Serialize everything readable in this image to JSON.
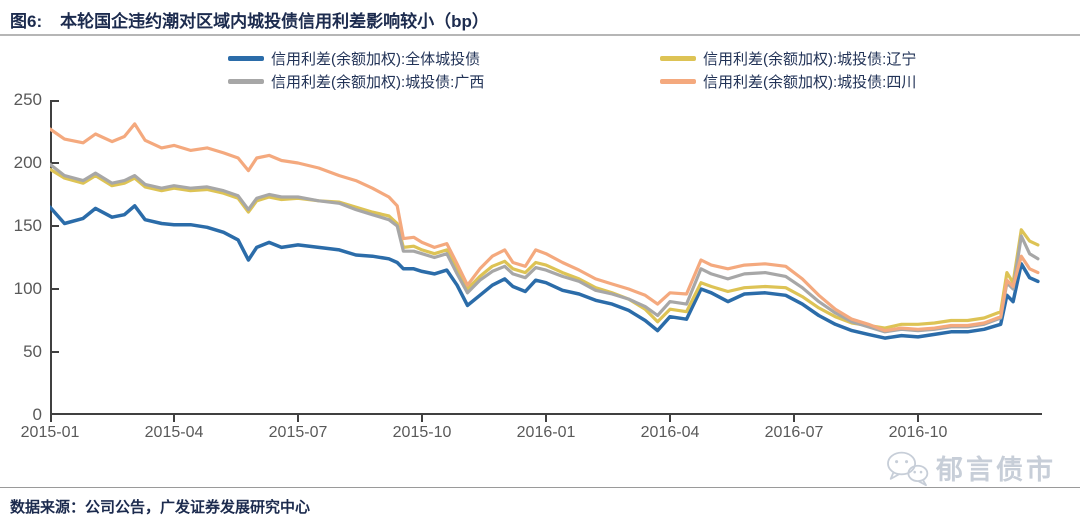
{
  "figure": {
    "label": "图6:",
    "title": "本轮国企违约潮对区域内城投债信用利差影响较小（bp）"
  },
  "source_note": "数据来源：公司公告，广发证券发展研究中心",
  "watermark": {
    "icon": "wechat-icon",
    "text": "郁言债市"
  },
  "chart_data": {
    "type": "line",
    "title": "本轮国企违约潮对区域内城投债信用利差影响较小（bp）",
    "unit": "bp",
    "grid": false,
    "legend_position": "top",
    "axis_color": "#404040",
    "tick_label_color": "#595959",
    "x_axis": {
      "labels": [
        "2015-01",
        "2015-04",
        "2015-07",
        "2015-10",
        "2016-01",
        "2016-04",
        "2016-07",
        "2016-10"
      ],
      "tick_month_offsets": [
        0,
        3,
        6,
        9,
        12,
        15,
        18,
        21
      ],
      "range_months": [
        0,
        24
      ],
      "note": "x values below are months since 2015-01"
    },
    "y_axis": {
      "ticks": [
        0,
        50,
        100,
        150,
        200,
        250
      ],
      "range": [
        0,
        250
      ]
    },
    "series": [
      {
        "id": "all",
        "name": "信用利差(余额加权):全体城投债",
        "color": "#2B6CA9",
        "width": 3.5,
        "points": [
          [
            0,
            165
          ],
          [
            0.35,
            152
          ],
          [
            0.8,
            156
          ],
          [
            1.1,
            164
          ],
          [
            1.5,
            157
          ],
          [
            1.8,
            159
          ],
          [
            2.05,
            166
          ],
          [
            2.3,
            155
          ],
          [
            2.7,
            152
          ],
          [
            3,
            151
          ],
          [
            3.4,
            151
          ],
          [
            3.8,
            149
          ],
          [
            4.2,
            145
          ],
          [
            4.55,
            139
          ],
          [
            4.8,
            123
          ],
          [
            5,
            133
          ],
          [
            5.3,
            137
          ],
          [
            5.6,
            133
          ],
          [
            6,
            135
          ],
          [
            6.5,
            133
          ],
          [
            7,
            131
          ],
          [
            7.4,
            127
          ],
          [
            7.8,
            126
          ],
          [
            8.2,
            124
          ],
          [
            8.4,
            121
          ],
          [
            8.55,
            116
          ],
          [
            8.8,
            116
          ],
          [
            9,
            114
          ],
          [
            9.3,
            112
          ],
          [
            9.6,
            115
          ],
          [
            9.85,
            103
          ],
          [
            10.1,
            87
          ],
          [
            10.4,
            95
          ],
          [
            10.7,
            103
          ],
          [
            11,
            108
          ],
          [
            11.2,
            102
          ],
          [
            11.5,
            98
          ],
          [
            11.75,
            107
          ],
          [
            12,
            105
          ],
          [
            12.4,
            99
          ],
          [
            12.8,
            96
          ],
          [
            13.2,
            91
          ],
          [
            13.6,
            88
          ],
          [
            14,
            83
          ],
          [
            14.4,
            75
          ],
          [
            14.7,
            67
          ],
          [
            15,
            78
          ],
          [
            15.4,
            76
          ],
          [
            15.75,
            100
          ],
          [
            16,
            97
          ],
          [
            16.4,
            90
          ],
          [
            16.8,
            96
          ],
          [
            17.3,
            97
          ],
          [
            17.8,
            95
          ],
          [
            18.2,
            88
          ],
          [
            18.6,
            79
          ],
          [
            19,
            72
          ],
          [
            19.4,
            67
          ],
          [
            19.8,
            64
          ],
          [
            20.2,
            61
          ],
          [
            20.6,
            63
          ],
          [
            21,
            62
          ],
          [
            21.4,
            64
          ],
          [
            21.8,
            66
          ],
          [
            22.2,
            66
          ],
          [
            22.6,
            68
          ],
          [
            23,
            72
          ],
          [
            23.15,
            95
          ],
          [
            23.3,
            90
          ],
          [
            23.5,
            120
          ],
          [
            23.7,
            109
          ],
          [
            23.9,
            106
          ]
        ]
      },
      {
        "id": "liaoning",
        "name": "信用利差(余额加权):城投债:辽宁",
        "color": "#DDC355",
        "width": 3.2,
        "points": [
          [
            0,
            195
          ],
          [
            0.35,
            188
          ],
          [
            0.8,
            184
          ],
          [
            1.1,
            190
          ],
          [
            1.5,
            182
          ],
          [
            1.8,
            184
          ],
          [
            2.05,
            188
          ],
          [
            2.3,
            181
          ],
          [
            2.7,
            178
          ],
          [
            3,
            180
          ],
          [
            3.4,
            178
          ],
          [
            3.8,
            179
          ],
          [
            4.2,
            176
          ],
          [
            4.55,
            172
          ],
          [
            4.8,
            161
          ],
          [
            5,
            170
          ],
          [
            5.3,
            173
          ],
          [
            5.6,
            171
          ],
          [
            6,
            172
          ],
          [
            6.5,
            170
          ],
          [
            7,
            169
          ],
          [
            7.4,
            165
          ],
          [
            7.8,
            161
          ],
          [
            8.2,
            158
          ],
          [
            8.4,
            152
          ],
          [
            8.55,
            133
          ],
          [
            8.8,
            134
          ],
          [
            9,
            131
          ],
          [
            9.3,
            128
          ],
          [
            9.6,
            131
          ],
          [
            9.85,
            116
          ],
          [
            10.1,
            100
          ],
          [
            10.4,
            110
          ],
          [
            10.7,
            118
          ],
          [
            11,
            122
          ],
          [
            11.2,
            116
          ],
          [
            11.5,
            113
          ],
          [
            11.75,
            121
          ],
          [
            12,
            119
          ],
          [
            12.4,
            113
          ],
          [
            12.8,
            108
          ],
          [
            13.2,
            101
          ],
          [
            13.6,
            97
          ],
          [
            14,
            92
          ],
          [
            14.4,
            84
          ],
          [
            14.7,
            74
          ],
          [
            15,
            84
          ],
          [
            15.4,
            82
          ],
          [
            15.75,
            105
          ],
          [
            16,
            102
          ],
          [
            16.4,
            98
          ],
          [
            16.8,
            101
          ],
          [
            17.3,
            102
          ],
          [
            17.8,
            101
          ],
          [
            18.2,
            94
          ],
          [
            18.6,
            85
          ],
          [
            19,
            78
          ],
          [
            19.4,
            73
          ],
          [
            19.8,
            71
          ],
          [
            20.2,
            69
          ],
          [
            20.6,
            72
          ],
          [
            21,
            72
          ],
          [
            21.4,
            73
          ],
          [
            21.8,
            75
          ],
          [
            22.2,
            75
          ],
          [
            22.6,
            77
          ],
          [
            23,
            82
          ],
          [
            23.15,
            113
          ],
          [
            23.3,
            105
          ],
          [
            23.5,
            147
          ],
          [
            23.7,
            138
          ],
          [
            23.9,
            135
          ]
        ]
      },
      {
        "id": "guangxi",
        "name": "信用利差(余额加权):城投债:广西",
        "color": "#A7A7A7",
        "width": 3.2,
        "points": [
          [
            0,
            199
          ],
          [
            0.35,
            190
          ],
          [
            0.8,
            186
          ],
          [
            1.1,
            192
          ],
          [
            1.5,
            184
          ],
          [
            1.8,
            186
          ],
          [
            2.05,
            190
          ],
          [
            2.3,
            183
          ],
          [
            2.7,
            180
          ],
          [
            3,
            182
          ],
          [
            3.4,
            180
          ],
          [
            3.8,
            181
          ],
          [
            4.2,
            178
          ],
          [
            4.55,
            174
          ],
          [
            4.8,
            163
          ],
          [
            5,
            172
          ],
          [
            5.3,
            175
          ],
          [
            5.6,
            173
          ],
          [
            6,
            173
          ],
          [
            6.5,
            170
          ],
          [
            7,
            168
          ],
          [
            7.4,
            163
          ],
          [
            7.8,
            159
          ],
          [
            8.2,
            155
          ],
          [
            8.4,
            150
          ],
          [
            8.55,
            130
          ],
          [
            8.8,
            130
          ],
          [
            9,
            128
          ],
          [
            9.3,
            125
          ],
          [
            9.6,
            128
          ],
          [
            9.85,
            112
          ],
          [
            10.1,
            97
          ],
          [
            10.4,
            107
          ],
          [
            10.7,
            114
          ],
          [
            11,
            118
          ],
          [
            11.2,
            112
          ],
          [
            11.5,
            109
          ],
          [
            11.75,
            117
          ],
          [
            12,
            115
          ],
          [
            12.4,
            110
          ],
          [
            12.8,
            106
          ],
          [
            13.2,
            99
          ],
          [
            13.6,
            96
          ],
          [
            14,
            92
          ],
          [
            14.4,
            86
          ],
          [
            14.7,
            79
          ],
          [
            15,
            90
          ],
          [
            15.4,
            88
          ],
          [
            15.75,
            116
          ],
          [
            16,
            112
          ],
          [
            16.4,
            108
          ],
          [
            16.8,
            112
          ],
          [
            17.3,
            113
          ],
          [
            17.8,
            110
          ],
          [
            18.2,
            101
          ],
          [
            18.6,
            90
          ],
          [
            19,
            81
          ],
          [
            19.4,
            74
          ],
          [
            19.8,
            70
          ],
          [
            20.2,
            66
          ],
          [
            20.6,
            68
          ],
          [
            21,
            67
          ],
          [
            21.4,
            68
          ],
          [
            21.8,
            70
          ],
          [
            22.2,
            70
          ],
          [
            22.6,
            72
          ],
          [
            23,
            77
          ],
          [
            23.15,
            105
          ],
          [
            23.3,
            100
          ],
          [
            23.5,
            142
          ],
          [
            23.7,
            128
          ],
          [
            23.9,
            124
          ]
        ]
      },
      {
        "id": "sichuan",
        "name": "信用利差(余额加权):城投债:四川",
        "color": "#F4A97E",
        "width": 3.2,
        "points": [
          [
            0,
            227
          ],
          [
            0.35,
            219
          ],
          [
            0.8,
            216
          ],
          [
            1.1,
            223
          ],
          [
            1.5,
            217
          ],
          [
            1.8,
            221
          ],
          [
            2.05,
            231
          ],
          [
            2.3,
            218
          ],
          [
            2.7,
            212
          ],
          [
            3,
            214
          ],
          [
            3.4,
            210
          ],
          [
            3.8,
            212
          ],
          [
            4.2,
            208
          ],
          [
            4.55,
            204
          ],
          [
            4.8,
            194
          ],
          [
            5,
            204
          ],
          [
            5.3,
            206
          ],
          [
            5.6,
            202
          ],
          [
            6,
            200
          ],
          [
            6.5,
            196
          ],
          [
            7,
            190
          ],
          [
            7.4,
            186
          ],
          [
            7.8,
            180
          ],
          [
            8.2,
            173
          ],
          [
            8.4,
            166
          ],
          [
            8.55,
            140
          ],
          [
            8.8,
            141
          ],
          [
            9,
            137
          ],
          [
            9.3,
            133
          ],
          [
            9.6,
            136
          ],
          [
            9.85,
            120
          ],
          [
            10.1,
            103
          ],
          [
            10.4,
            116
          ],
          [
            10.7,
            126
          ],
          [
            11,
            131
          ],
          [
            11.2,
            121
          ],
          [
            11.5,
            118
          ],
          [
            11.75,
            131
          ],
          [
            12,
            128
          ],
          [
            12.4,
            121
          ],
          [
            12.8,
            115
          ],
          [
            13.2,
            108
          ],
          [
            13.6,
            104
          ],
          [
            14,
            100
          ],
          [
            14.4,
            95
          ],
          [
            14.7,
            88
          ],
          [
            15,
            97
          ],
          [
            15.4,
            96
          ],
          [
            15.75,
            123
          ],
          [
            16,
            119
          ],
          [
            16.4,
            116
          ],
          [
            16.8,
            119
          ],
          [
            17.3,
            120
          ],
          [
            17.8,
            118
          ],
          [
            18.2,
            108
          ],
          [
            18.6,
            95
          ],
          [
            19,
            84
          ],
          [
            19.4,
            76
          ],
          [
            19.8,
            72
          ],
          [
            20.2,
            67
          ],
          [
            20.6,
            69
          ],
          [
            21,
            68
          ],
          [
            21.4,
            69
          ],
          [
            21.8,
            71
          ],
          [
            22.2,
            71
          ],
          [
            22.6,
            73
          ],
          [
            23,
            78
          ],
          [
            23.15,
            107
          ],
          [
            23.3,
            102
          ],
          [
            23.5,
            126
          ],
          [
            23.7,
            116
          ],
          [
            23.9,
            113
          ]
        ]
      }
    ]
  }
}
